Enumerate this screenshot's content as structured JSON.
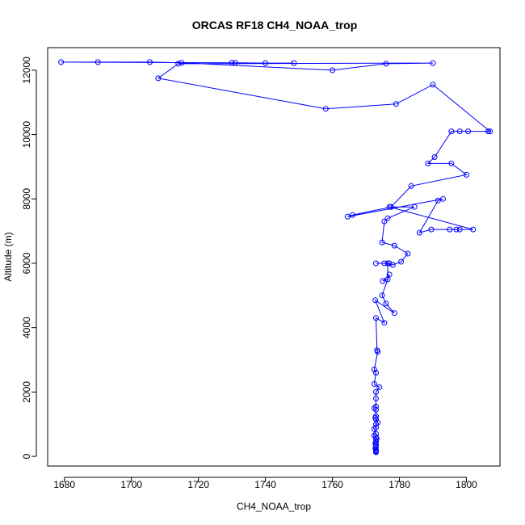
{
  "chart_data": {
    "type": "line",
    "title": "ORCAS RF18 CH4_NOAA_trop",
    "xlabel": "CH4_NOAA_trop",
    "ylabel": "Altitude (m)",
    "xlim": [
      1675,
      1810
    ],
    "ylim": [
      -300,
      12700
    ],
    "xticks": [
      1680,
      1700,
      1720,
      1740,
      1760,
      1780,
      1800
    ],
    "yticks": [
      0,
      2000,
      4000,
      6000,
      8000,
      10000,
      12000
    ],
    "grid": false,
    "colors": {
      "series": "#0000ff",
      "axis": "#000000"
    },
    "series": [
      {
        "x": [
          1773,
          1773,
          1773,
          1773,
          1772.8,
          1773,
          1773,
          1772.8,
          1773,
          1773,
          1773.2,
          1773,
          1772.5,
          1773,
          1772.5,
          1773,
          1773,
          1773.5,
          1773,
          1772.8,
          1773,
          1773,
          1772.5,
          1773,
          1773,
          1773,
          1774,
          1772.5,
          1773,
          1772.5,
          1773.5,
          1773.3,
          1773,
          1775.5,
          1772.8,
          1778.5,
          1776,
          1774.8,
          1777,
          1775,
          1776.5,
          1776.5,
          1777,
          1773,
          1775.5,
          1778,
          1780.5,
          1782.5,
          1778.5,
          1774.8,
          1775.5,
          1776.5,
          1784.5,
          1777.5,
          1766,
          1764.5,
          1793,
          1791.5,
          1786,
          1789.5,
          1795,
          1797,
          1798,
          1802,
          1777,
          1777.5,
          1783.5,
          1800,
          1795.5,
          1788.5,
          1790.5,
          1795.5,
          1798,
          1800.5,
          1806.5,
          1807,
          1790,
          1779,
          1758,
          1708,
          1714,
          1790,
          1776,
          1760,
          1715,
          1705.5,
          1690,
          1679,
          1730,
          1731,
          1740,
          1748.5
        ],
        "y": [
          130,
          150,
          170,
          200,
          250,
          300,
          350,
          400,
          450,
          500,
          550,
          600,
          650,
          700,
          850,
          900,
          1000,
          1050,
          1150,
          1200,
          1250,
          1450,
          1500,
          1550,
          1800,
          2000,
          2150,
          2250,
          2600,
          2700,
          3250,
          3300,
          4300,
          4150,
          4850,
          4450,
          4750,
          5000,
          5650,
          5450,
          5500,
          6000,
          6000,
          6000,
          6000,
          5950,
          6050,
          6300,
          6550,
          6650,
          7300,
          7400,
          7750,
          7750,
          7500,
          7450,
          8000,
          7950,
          6950,
          7050,
          7050,
          7050,
          7050,
          7050,
          7750,
          7750,
          8400,
          8750,
          9100,
          9100,
          9300,
          10100,
          10100,
          10100,
          10100,
          10100,
          11550,
          10950,
          10800,
          11750,
          12200,
          12220,
          12200,
          12000,
          12230,
          12250,
          12250,
          12250,
          12230,
          12230,
          12220,
          12220
        ]
      }
    ]
  }
}
